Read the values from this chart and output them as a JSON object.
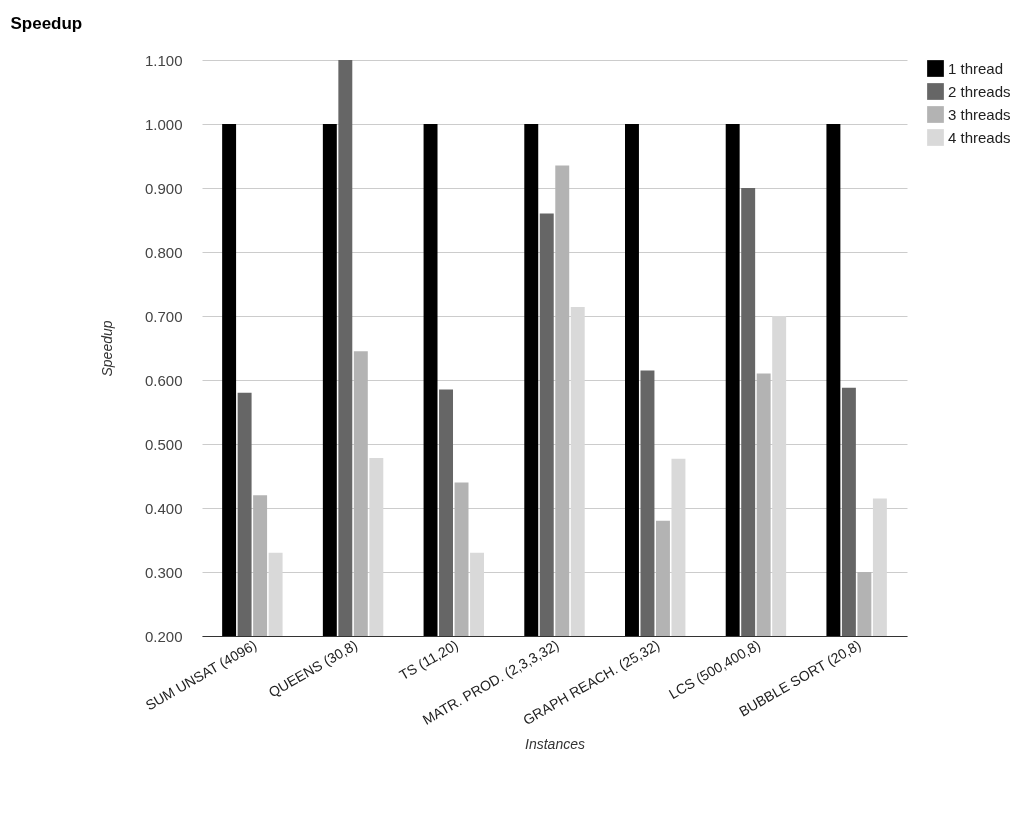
{
  "chart_data": {
    "type": "bar",
    "title": "Speedup",
    "xlabel": "Instances",
    "ylabel": "Speedup",
    "categories": [
      "SUM UNSAT (4096)",
      "QUEENS (30,8)",
      "TS (11,20)",
      "MATR. PROD. (2,3,3,32)",
      "GRAPH REACH. (25,32)",
      "LCS (500,400,8)",
      "BUBBLE SORT (20,8)"
    ],
    "series": [
      {
        "name": "1 thread",
        "color": "#000000",
        "values": [
          1.0,
          1.0,
          1.0,
          1.0,
          1.0,
          1.0,
          1.0
        ]
      },
      {
        "name": "2 threads",
        "color": "#666666",
        "values": [
          0.58,
          1.1,
          0.585,
          0.86,
          0.615,
          0.9,
          0.588
        ]
      },
      {
        "name": "3 threads",
        "color": "#b3b3b3",
        "values": [
          0.42,
          0.645,
          0.44,
          0.935,
          0.38,
          0.61,
          0.3
        ]
      },
      {
        "name": "4 threads",
        "color": "#d9d9d9",
        "values": [
          0.33,
          0.478,
          0.33,
          0.714,
          0.477,
          0.7,
          0.415
        ]
      }
    ],
    "ylim": [
      0.2,
      1.1
    ],
    "yticks": [
      {
        "value": 0.2,
        "label": "0.200"
      },
      {
        "value": 0.3,
        "label": "0.300"
      },
      {
        "value": 0.4,
        "label": "0.400"
      },
      {
        "value": 0.5,
        "label": "0.500"
      },
      {
        "value": 0.6,
        "label": "0.600"
      },
      {
        "value": 0.7,
        "label": "0.700"
      },
      {
        "value": 0.8,
        "label": "0.800"
      },
      {
        "value": 0.9,
        "label": "0.900"
      },
      {
        "value": 1.0,
        "label": "1.000"
      },
      {
        "value": 1.1,
        "label": "1.100"
      }
    ],
    "grid": "y",
    "legend": "top right"
  }
}
